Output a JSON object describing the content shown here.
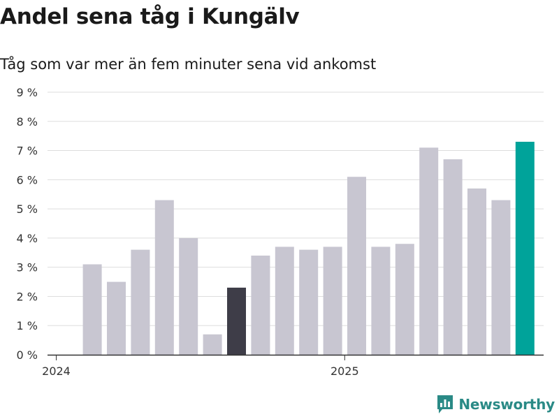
{
  "chart_data": {
    "type": "bar",
    "title": "Andel sena tåg i Kungälv",
    "subtitle": "Tåg som var mer än fem minuter sena vid ankomst",
    "x_tick_labels": [
      "2024",
      "2025"
    ],
    "y_tick_labels": [
      "0 %",
      "1 %",
      "2 %",
      "3 %",
      "4 %",
      "5 %",
      "6 %",
      "7 %",
      "8 %",
      "9 %"
    ],
    "ylim": [
      0,
      9
    ],
    "grid": true,
    "categories": [
      "2024-02",
      "2024-03",
      "2024-04",
      "2024-05",
      "2024-06",
      "2024-07",
      "2024-08",
      "2024-09",
      "2024-10",
      "2024-11",
      "2024-12",
      "2025-01",
      "2025-02",
      "2025-03",
      "2025-04",
      "2025-05",
      "2025-06",
      "2025-07",
      "2025-08"
    ],
    "values": [
      3.1,
      2.5,
      3.6,
      5.3,
      4.0,
      0.7,
      2.3,
      3.4,
      3.7,
      3.6,
      3.7,
      6.1,
      3.7,
      3.8,
      7.1,
      6.7,
      5.7,
      5.3,
      7.3
    ],
    "highlight": {
      "2024-08": "#3e3d48",
      "2025-08": "#00a39a"
    },
    "bar_color": "#c8c6d1"
  },
  "brand": {
    "name": "Newsworthy",
    "color": "#2a8a86"
  }
}
